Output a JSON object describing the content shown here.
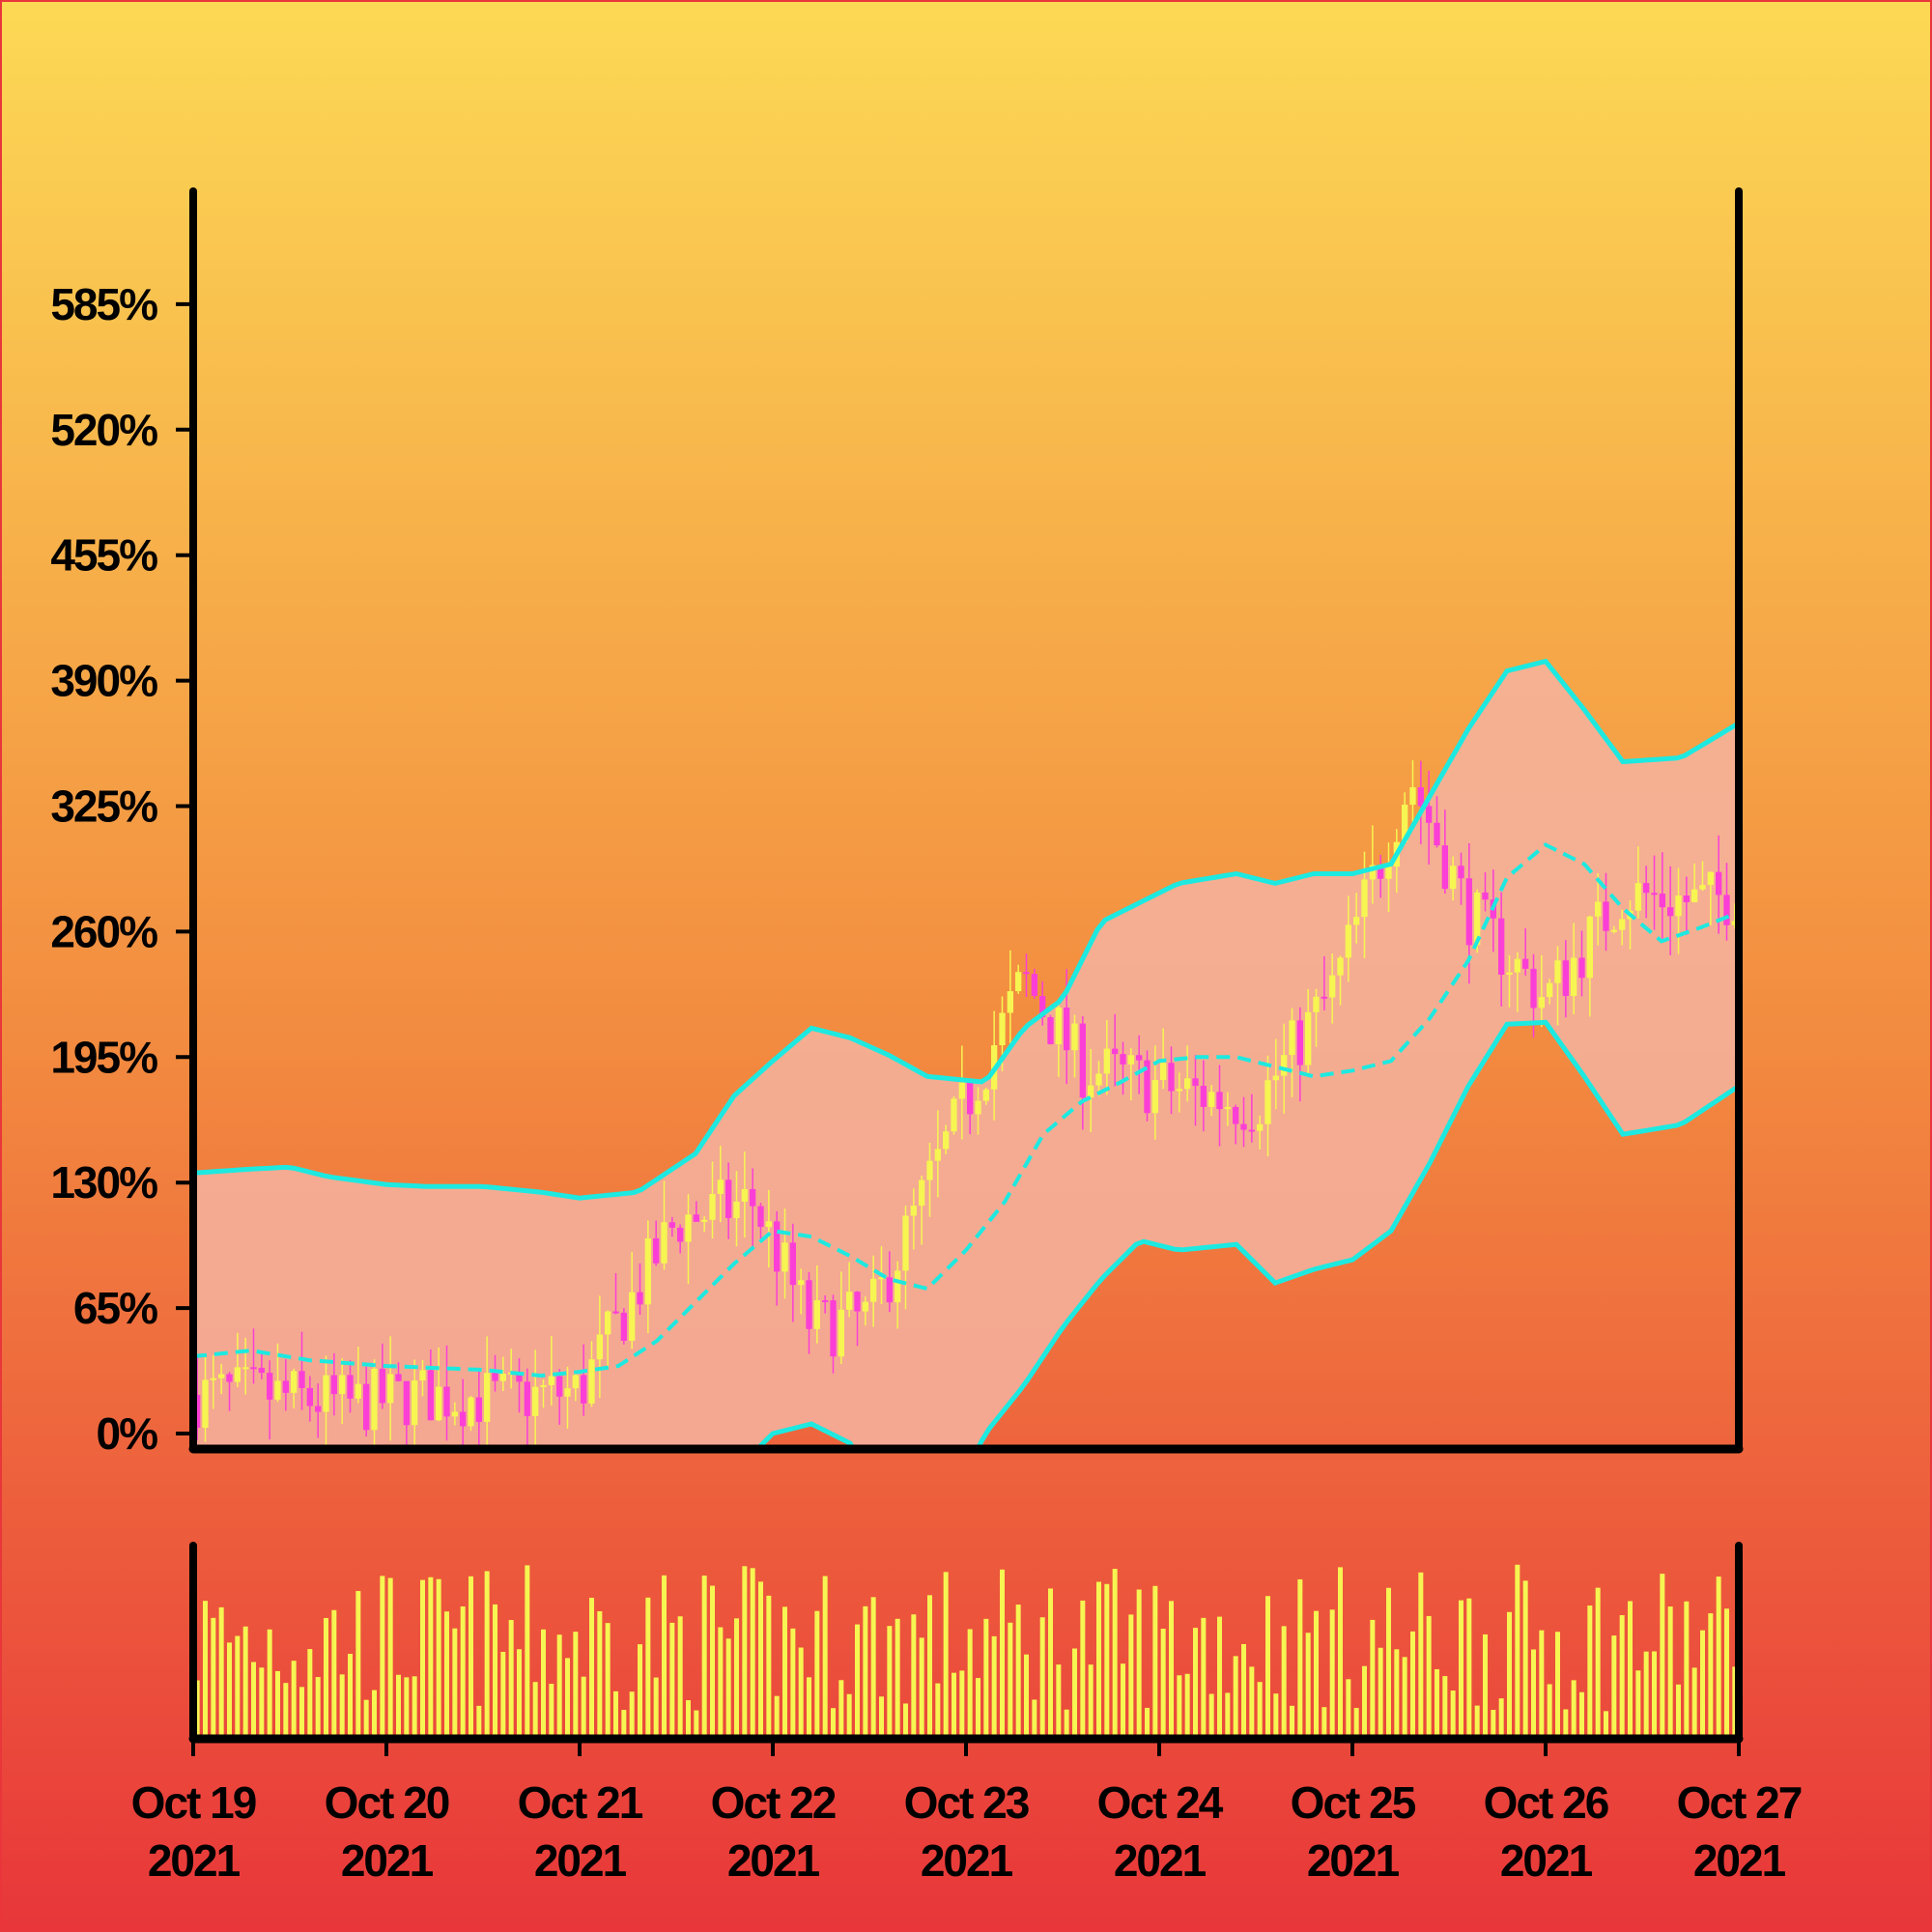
{
  "colors": {
    "background_top": "#fcd955",
    "background_mid": "#f2893f",
    "background_bottom": "#e8363a",
    "border": "#e8363a",
    "axis": "#000000",
    "band_line": "#1de9e0",
    "band_fill": "#f4b3a0",
    "candle_up": "#f6f552",
    "candle_down": "#fb3fd6",
    "volume_bar": "#f6f552"
  },
  "chart_data": {
    "type": "candlestick",
    "title": "",
    "xlabel": "",
    "ylabel": "",
    "y_ticks": [
      "0%",
      "65%",
      "130%",
      "195%",
      "260%",
      "325%",
      "390%",
      "455%",
      "520%",
      "585%"
    ],
    "y_tick_values": [
      0,
      65,
      130,
      195,
      260,
      325,
      390,
      455,
      520,
      585
    ],
    "ylim": [
      -8,
      645
    ],
    "x_ticks": [
      {
        "month_day": "Oct 19",
        "year": "2021"
      },
      {
        "month_day": "Oct 20",
        "year": "2021"
      },
      {
        "month_day": "Oct 21",
        "year": "2021"
      },
      {
        "month_day": "Oct 22",
        "year": "2021"
      },
      {
        "month_day": "Oct 23",
        "year": "2021"
      },
      {
        "month_day": "Oct 24",
        "year": "2021"
      },
      {
        "month_day": "Oct 25",
        "year": "2021"
      },
      {
        "month_day": "Oct 26",
        "year": "2021"
      },
      {
        "month_day": "Oct 27",
        "year": "2021"
      }
    ],
    "x_range": [
      "2021-10-19",
      "2021-10-27"
    ],
    "grid": false,
    "legend": "none",
    "candle_count": 192,
    "price_path": {
      "x_days": [
        0,
        0.4,
        0.8,
        1.2,
        1.6,
        2.0,
        2.5,
        2.9,
        3.2,
        3.5,
        3.9,
        4.3,
        4.6,
        5.0,
        5.5,
        5.9,
        6.3,
        6.6,
        7.0,
        7.4,
        7.8,
        8.0
      ],
      "close_pct": [
        20,
        20,
        15,
        20,
        18,
        22,
        110,
        120,
        55,
        60,
        150,
        235,
        190,
        180,
        170,
        230,
        340,
        270,
        225,
        280,
        275,
        280
      ]
    },
    "bollinger_upper": {
      "x_days": [
        0,
        0.3,
        0.5,
        0.7,
        1.0,
        1.2,
        1.5,
        1.8,
        2.0,
        2.3,
        2.6,
        2.8,
        3.0,
        3.2,
        3.4,
        3.6,
        3.8,
        4.1,
        4.3,
        4.5,
        4.7,
        4.9,
        5.1,
        5.4,
        5.6,
        5.8,
        6.0,
        6.2,
        6.4,
        6.6,
        6.8,
        7.0,
        7.2,
        7.4,
        7.7,
        8.0
      ],
      "value_pct": [
        135,
        137,
        138,
        133,
        129,
        128,
        128,
        125,
        122,
        125,
        145,
        175,
        193,
        210,
        205,
        196,
        185,
        182,
        210,
        225,
        265,
        275,
        285,
        290,
        285,
        290,
        290,
        295,
        330,
        365,
        395,
        400,
        375,
        348,
        350,
        368
      ]
    },
    "bollinger_middle": {
      "x_days": [
        0,
        0.3,
        0.6,
        1.0,
        1.5,
        1.8,
        2.0,
        2.2,
        2.4,
        2.6,
        2.8,
        3.0,
        3.2,
        3.4,
        3.6,
        3.8,
        4.0,
        4.2,
        4.4,
        4.6,
        4.8,
        5.0,
        5.2,
        5.4,
        5.6,
        5.8,
        6.0,
        6.2,
        6.4,
        6.6,
        6.8,
        7.0,
        7.2,
        7.4,
        7.6,
        7.8,
        8.0
      ],
      "value_pct": [
        40,
        43,
        38,
        35,
        33,
        30,
        32,
        35,
        48,
        68,
        88,
        105,
        102,
        92,
        80,
        75,
        95,
        120,
        155,
        172,
        182,
        193,
        195,
        195,
        190,
        185,
        188,
        193,
        215,
        245,
        288,
        305,
        295,
        272,
        255,
        262,
        270
      ]
    },
    "bollinger_lower": {
      "x_days": [
        0,
        0.8,
        1.6,
        2.3,
        2.6,
        2.8,
        3.0,
        3.2,
        3.4,
        3.6,
        3.8,
        4.0,
        4.1,
        4.3,
        4.5,
        4.7,
        4.9,
        5.1,
        5.4,
        5.6,
        5.8,
        6.0,
        6.2,
        6.4,
        6.6,
        6.8,
        7.0,
        7.2,
        7.4,
        7.7,
        8.0
      ],
      "value_pct": [
        -60,
        -62,
        -65,
        -60,
        -45,
        -20,
        0,
        5,
        -5,
        -40,
        -45,
        -20,
        0,
        25,
        55,
        80,
        100,
        95,
        98,
        78,
        85,
        90,
        105,
        140,
        180,
        212,
        213,
        185,
        155,
        160,
        180
      ]
    },
    "volume": {
      "description_units": "relative volume, 0-1 of panel height",
      "seed_pattern": "varies per candle"
    }
  }
}
